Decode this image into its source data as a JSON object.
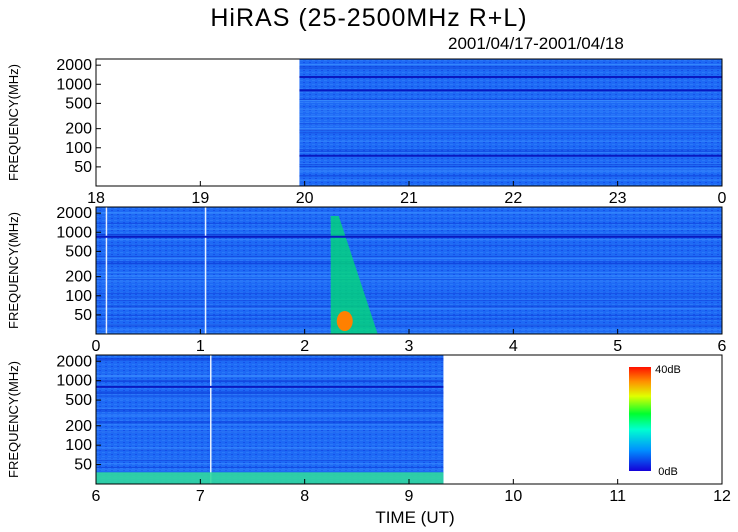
{
  "title": "HiRAS (25-2500MHz R+L)",
  "date_range": "2001/04/17-2001/04/18",
  "chart_data": [
    {
      "type": "heatmap",
      "panel": 1,
      "xlabel": "",
      "ylabel": "FREQUENCY(MHz)",
      "x_ticks": [
        "18",
        "19",
        "20",
        "21",
        "22",
        "23",
        "0"
      ],
      "y_ticks": [
        "2000",
        "1000",
        "500",
        "200",
        "100",
        "50"
      ],
      "xlim": [
        18,
        24
      ],
      "ylim_mhz": [
        25,
        2500
      ],
      "y_scale": "log",
      "data_start_hour": 19.95,
      "data_end_hour": 24,
      "features": [
        {
          "type": "interference",
          "freq_mhz": 1300
        },
        {
          "type": "interference",
          "freq_mhz": 800
        },
        {
          "type": "interference",
          "freq_mhz": 75
        }
      ]
    },
    {
      "type": "heatmap",
      "panel": 2,
      "xlabel": "",
      "ylabel": "FREQUENCY(MHz)",
      "x_ticks": [
        "0",
        "1",
        "2",
        "3",
        "4",
        "5",
        "6"
      ],
      "y_ticks": [
        "2000",
        "1000",
        "500",
        "200",
        "100",
        "50"
      ],
      "xlim": [
        0,
        6
      ],
      "ylim_mhz": [
        25,
        2500
      ],
      "y_scale": "log",
      "data_start_hour": 0,
      "data_end_hour": 6,
      "features": [
        {
          "type": "burst",
          "start_hour": 2.25,
          "end_hour": 2.7,
          "peak_freq_mhz": 40
        },
        {
          "type": "gap",
          "hour": 0.1
        },
        {
          "type": "gap",
          "hour": 1.05
        },
        {
          "type": "interference",
          "freq_mhz": 850
        }
      ]
    },
    {
      "type": "heatmap",
      "panel": 3,
      "xlabel": "TIME (UT)",
      "ylabel": "FREQUENCY(MHz)",
      "x_ticks": [
        "6",
        "7",
        "8",
        "9",
        "10",
        "11",
        "12"
      ],
      "y_ticks": [
        "2000",
        "1000",
        "500",
        "200",
        "100",
        "50"
      ],
      "xlim": [
        6,
        12
      ],
      "ylim_mhz": [
        25,
        2500
      ],
      "y_scale": "log",
      "data_start_hour": 6,
      "data_end_hour": 9.33,
      "features": [
        {
          "type": "gap",
          "hour": 7.1
        },
        {
          "type": "interference",
          "freq_mhz": 800
        },
        {
          "type": "band",
          "min_freq_mhz": 25,
          "max_freq_mhz": 38
        }
      ],
      "colorbar": {
        "max_label": "40dB",
        "min_label": "0dB",
        "range_db": [
          0,
          40
        ]
      }
    }
  ],
  "colors": {
    "background": "#1a5cf2",
    "low": "#0a10d8",
    "burst": "#00e070",
    "burst_core": "#ff8000"
  }
}
